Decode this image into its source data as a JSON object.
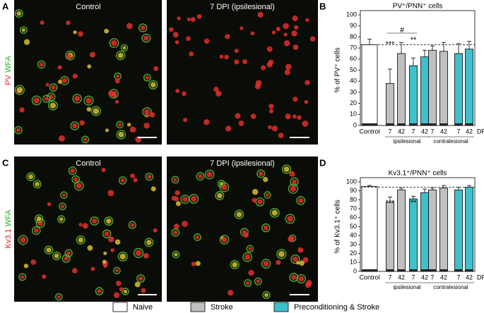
{
  "figure": {
    "panel_labels": [
      "A",
      "B",
      "C",
      "D"
    ],
    "image_titles": [
      "Control",
      "7 DPI (ipsilesional)",
      "Control",
      "7 DPI (ipsilesional)"
    ],
    "stains_top": [
      "PV",
      "WFA"
    ],
    "stains_bottom": [
      "Kv3.1",
      "WFA"
    ]
  },
  "legend": [
    {
      "name": "Naive",
      "color": "#ffffff"
    },
    {
      "name": "Stroke",
      "color": "#c0c0c0"
    },
    {
      "name": "Preconditioning & Stroke",
      "color": "#3fc0cc"
    }
  ],
  "chart_data": [
    {
      "type": "bar",
      "title": "PV⁺/PNN⁺ cells",
      "y_label": "% of PV⁺ cells",
      "categories": [
        "Control",
        "7",
        "42",
        "7",
        "42",
        "7",
        "42",
        "7",
        "42"
      ],
      "group_labels": [
        "ipsilesional",
        "contralesional"
      ],
      "x_unit": "DPI",
      "values": [
        73,
        38,
        65,
        54,
        62,
        68,
        67,
        65,
        69
      ],
      "errors": [
        5,
        13,
        10,
        7,
        6,
        4,
        8,
        9,
        7
      ],
      "colors": [
        "#ffffff",
        "#c0c0c0",
        "#c0c0c0",
        "#3fc0cc",
        "#3fc0cc",
        "#c0c0c0",
        "#c0c0c0",
        "#3fc0cc",
        "#3fc0cc"
      ],
      "ylim": [
        0,
        100
      ],
      "yticks": [
        0,
        10,
        20,
        30,
        40,
        50,
        60,
        70,
        80,
        90,
        100
      ],
      "reference_line": 73,
      "annotations": [
        "***",
        "**",
        "#"
      ]
    },
    {
      "type": "bar",
      "title": "Kv3.1⁺/PNN⁺ cells",
      "y_label": "% of Kv3.1⁺ cells",
      "categories": [
        "Control",
        "7",
        "42",
        "7",
        "42",
        "7",
        "42",
        "7",
        "42"
      ],
      "group_labels": [
        "ipsilesional",
        "contralesional"
      ],
      "x_unit": "DPI",
      "values": [
        95,
        77,
        91,
        81,
        88,
        91,
        93,
        91,
        94
      ],
      "errors": [
        1,
        6,
        2,
        3,
        4,
        2,
        3,
        3,
        2
      ],
      "colors": [
        "#ffffff",
        "#c0c0c0",
        "#c0c0c0",
        "#3fc0cc",
        "#3fc0cc",
        "#c0c0c0",
        "#c0c0c0",
        "#3fc0cc",
        "#3fc0cc"
      ],
      "ylim": [
        0,
        100
      ],
      "yticks": [
        0,
        10,
        20,
        30,
        40,
        50,
        60,
        70,
        80,
        90,
        100
      ],
      "reference_line": 94,
      "annotations": [
        "***",
        "**"
      ]
    }
  ]
}
